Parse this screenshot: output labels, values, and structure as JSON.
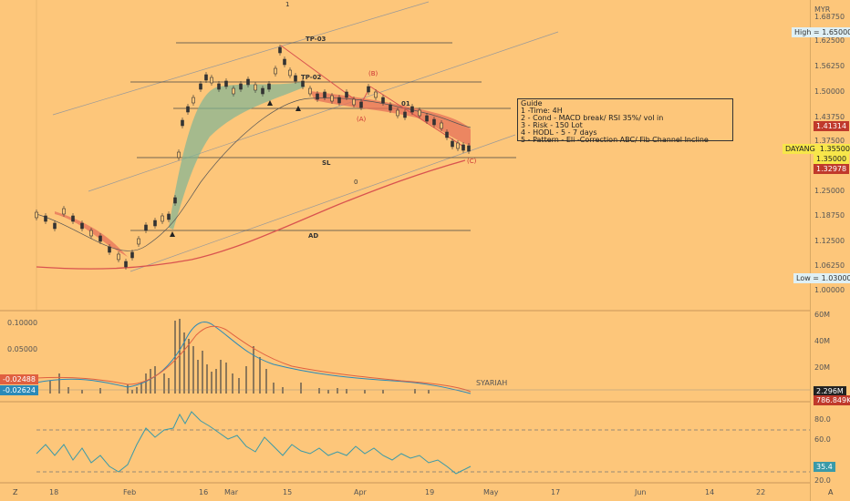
{
  "currency": "MYR",
  "price_axis": [
    "1.68750",
    "1.62500",
    "1.56250",
    "1.50000",
    "1.43750",
    "1.37500",
    "1.25000",
    "1.18750",
    "1.12500",
    "1.06250",
    "1.00000"
  ],
  "tags": {
    "high_label": "High",
    "high_value": "1.65000",
    "low_label": "Low",
    "low_value": "1.03000",
    "red_top": "1.41314",
    "symbol": "DAYANG",
    "last_price": "1.35500",
    "level_135": "1.35000",
    "red_bottom": "1.32978"
  },
  "guide": {
    "title": "Guide",
    "lines": [
      "1 -Time: 4H",
      "2 - Cond - MACD break/ RSI 35%/ vol in",
      "3 - Risk - 150 Lot",
      "4 - HODL - 5 - 7 days",
      "5 - Pattern - Eli -Correction ABC/ Fib Channel Incline"
    ]
  },
  "annotations": {
    "tp03": "TP-03",
    "tp02": "TP-02",
    "tp01": "01",
    "sl": "SL",
    "ad": "AD",
    "fib_1": "1",
    "fib_0": "0",
    "wave_b": "(B)",
    "wave_a": "(A)",
    "wave_c": "(C)"
  },
  "macd": {
    "axis": [
      "0.10000",
      "0.05000"
    ],
    "tag1": "-0.02488",
    "tag2": "-0.02624",
    "label": "SYARIAH",
    "vol_axis": [
      "60M",
      "40M",
      "20M"
    ],
    "vol_tag": "2.296M",
    "vol_tag2": "786.849K"
  },
  "rsi": {
    "axis": [
      "80.0",
      "60.0",
      "20.0"
    ],
    "value": "35.4"
  },
  "x_axis": [
    "18",
    "Feb",
    "16",
    "Mar",
    "15",
    "Apr",
    "19",
    "May",
    "17",
    "Jun",
    "14",
    "22"
  ],
  "corner_left": "Z",
  "corner_right": "A"
}
